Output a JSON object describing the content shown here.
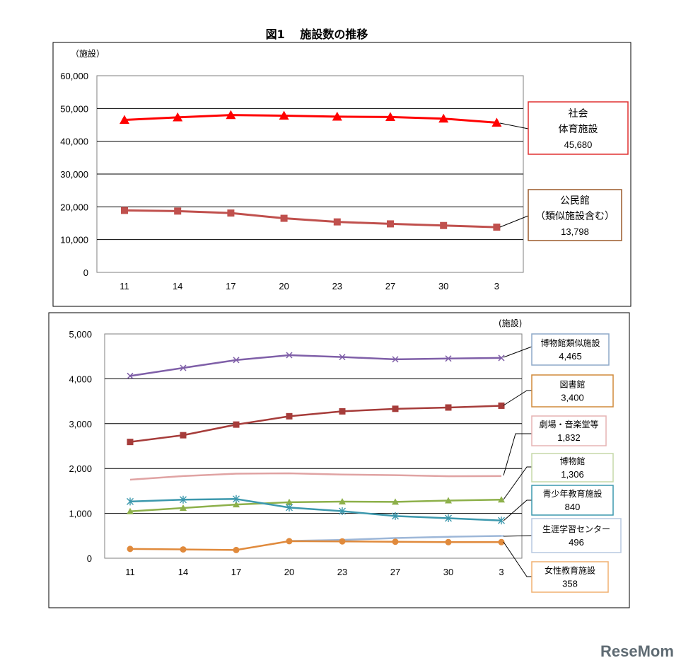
{
  "title": "図1　 施設数の推移",
  "chart_data": [
    {
      "type": "line",
      "unit_label": "（施設）",
      "categories": [
        "11",
        "14",
        "17",
        "20",
        "23",
        "27",
        "30",
        "3"
      ],
      "ylim": [
        0,
        60000
      ],
      "yticks": [
        "0",
        "10,000",
        "20,000",
        "30,000",
        "40,000",
        "50,000",
        "60,000"
      ],
      "grid": true,
      "series": [
        {
          "id": "social-sports",
          "label_lines": [
            "社会",
            "体育施設"
          ],
          "latest": "45,680",
          "color": "#ff0000",
          "box_color": "#e03131",
          "marker": "triangle",
          "values": [
            46500,
            47300,
            48000,
            47800,
            47500,
            47400,
            46900,
            45680
          ]
        },
        {
          "id": "kominkan",
          "label_lines": [
            "公民館",
            "（類似施設含む）"
          ],
          "latest": "13,798",
          "color": "#c0504d",
          "box_color": "#9b5a2a",
          "marker": "square",
          "values": [
            18900,
            18700,
            18100,
            16500,
            15400,
            14800,
            14300,
            13798
          ]
        }
      ]
    },
    {
      "type": "line",
      "unit_label": "(施設)",
      "categories": [
        "11",
        "14",
        "17",
        "20",
        "23",
        "27",
        "30",
        "3"
      ],
      "ylim": [
        0,
        5000
      ],
      "yticks": [
        "0",
        "1,000",
        "2,000",
        "3,000",
        "4,000",
        "5,000"
      ],
      "grid": true,
      "series": [
        {
          "id": "museum-similar",
          "label_lines": [
            "博物館類似施設"
          ],
          "latest": "4,465",
          "color": "#7f5fa8",
          "box_color": "#8ea9c8",
          "marker": "x",
          "values": [
            4064,
            4243,
            4418,
            4527,
            4485,
            4434,
            4452,
            4465
          ]
        },
        {
          "id": "library",
          "label_lines": [
            "図書館"
          ],
          "latest": "3,400",
          "color": "#a63c3a",
          "box_color": "#d08a3a",
          "marker": "square",
          "values": [
            2592,
            2742,
            2979,
            3165,
            3274,
            3331,
            3360,
            3400
          ]
        },
        {
          "id": "theater",
          "label_lines": [
            "劇場・音楽堂等"
          ],
          "latest": "1,832",
          "color": "#e0a3a3",
          "box_color": "#e6b4b4",
          "marker": "none",
          "values": [
            1751,
            1832,
            1885,
            1893,
            1866,
            1851,
            1827,
            1832
          ]
        },
        {
          "id": "museum",
          "label_lines": [
            "博物館"
          ],
          "latest": "1,306",
          "color": "#8db04a",
          "box_color": "#c5d9a8",
          "marker": "triangle",
          "values": [
            1045,
            1120,
            1196,
            1248,
            1262,
            1256,
            1286,
            1306
          ]
        },
        {
          "id": "youth",
          "label_lines": [
            "青少年教育施設"
          ],
          "latest": "840",
          "color": "#3c98ad",
          "box_color": "#3c98ad",
          "marker": "asterisk",
          "values": [
            1263,
            1305,
            1320,
            1129,
            1048,
            941,
            891,
            840
          ]
        },
        {
          "id": "lifelong",
          "label_lines": [
            "生涯学習センター"
          ],
          "latest": "496",
          "color": "#9db7d8",
          "box_color": "#b7c8e0",
          "marker": "dash",
          "values": [
            null,
            null,
            null,
            384,
            409,
            449,
            478,
            496
          ]
        },
        {
          "id": "women",
          "label_lines": [
            "女性教育施設"
          ],
          "latest": "358",
          "color": "#e08a3c",
          "box_color": "#f0b070",
          "marker": "circle",
          "values": [
            207,
            196,
            183,
            380,
            375,
            367,
            358,
            358
          ]
        }
      ]
    }
  ],
  "watermark": "ReseMom"
}
